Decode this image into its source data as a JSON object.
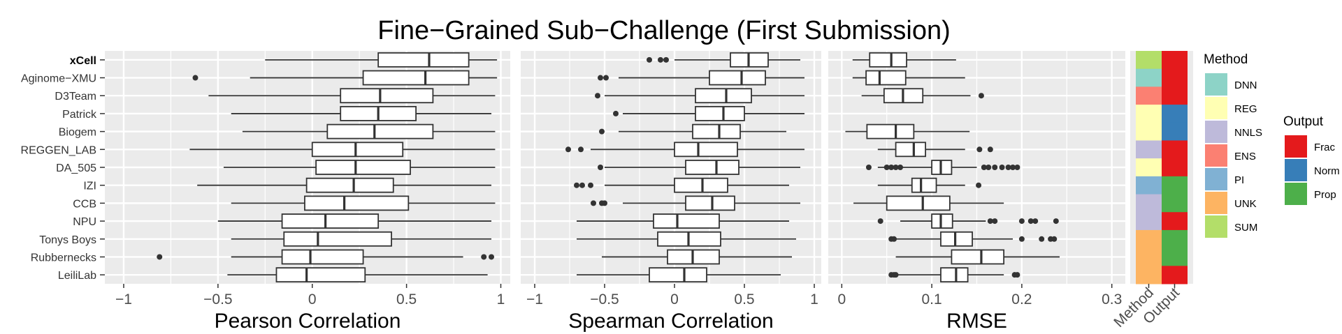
{
  "chart_data": {
    "type": "boxplot",
    "title": "Fine−Grained Sub−Challenge (First Submission)",
    "teams": [
      "xCell",
      "Aginome−XMU",
      "D3Team",
      "Patrick",
      "Biogem",
      "REGGEN_LAB",
      "DA_505",
      "IZI",
      "CCB",
      "NPU",
      "Tonys Boys",
      "Rubbernecks",
      "LeiliLab"
    ],
    "bold_team": "xCell",
    "panels": [
      {
        "xlabel": "Pearson Correlation",
        "xlim": [
          -1.1,
          1.05
        ],
        "ticks": [
          -1,
          -0.5,
          0,
          0.5,
          1
        ],
        "tick_labels": [
          "−1",
          "−0.5",
          "0",
          "0.5",
          "1"
        ],
        "boxes": [
          {
            "team": "xCell",
            "whisker_low": -0.25,
            "q1": 0.35,
            "median": 0.62,
            "q3": 0.83,
            "whisker_high": 0.98,
            "outliers": []
          },
          {
            "team": "Aginome−XMU",
            "whisker_low": -0.33,
            "q1": 0.27,
            "median": 0.6,
            "q3": 0.83,
            "whisker_high": 0.98,
            "outliers": [
              -0.62
            ]
          },
          {
            "team": "D3Team",
            "whisker_low": -0.55,
            "q1": 0.15,
            "median": 0.36,
            "q3": 0.64,
            "whisker_high": 0.97,
            "outliers": []
          },
          {
            "team": "Patrick",
            "whisker_low": -0.43,
            "q1": 0.15,
            "median": 0.35,
            "q3": 0.55,
            "whisker_high": 0.95,
            "outliers": []
          },
          {
            "team": "Biogem",
            "whisker_low": -0.37,
            "q1": 0.08,
            "median": 0.33,
            "q3": 0.64,
            "whisker_high": 0.97,
            "outliers": []
          },
          {
            "team": "REGGEN_LAB",
            "whisker_low": -0.65,
            "q1": 0.0,
            "median": 0.23,
            "q3": 0.48,
            "whisker_high": 0.97,
            "outliers": []
          },
          {
            "team": "DA_505",
            "whisker_low": -0.47,
            "q1": 0.02,
            "median": 0.23,
            "q3": 0.52,
            "whisker_high": 0.97,
            "outliers": []
          },
          {
            "team": "IZI",
            "whisker_low": -0.61,
            "q1": -0.03,
            "median": 0.22,
            "q3": 0.43,
            "whisker_high": 0.95,
            "outliers": []
          },
          {
            "team": "CCB",
            "whisker_low": -0.43,
            "q1": -0.04,
            "median": 0.17,
            "q3": 0.51,
            "whisker_high": 0.97,
            "outliers": []
          },
          {
            "team": "NPU",
            "whisker_low": -0.5,
            "q1": -0.16,
            "median": 0.07,
            "q3": 0.35,
            "whisker_high": 0.95,
            "outliers": []
          },
          {
            "team": "Tonys Boys",
            "whisker_low": -0.43,
            "q1": -0.15,
            "median": 0.03,
            "q3": 0.42,
            "whisker_high": 0.95,
            "outliers": []
          },
          {
            "team": "Rubbernecks",
            "whisker_low": -0.43,
            "q1": -0.16,
            "median": -0.01,
            "q3": 0.27,
            "whisker_high": 0.8,
            "outliers": [
              -0.81,
              0.91,
              0.95
            ]
          },
          {
            "team": "LeiliLab",
            "whisker_low": -0.45,
            "q1": -0.19,
            "median": -0.03,
            "q3": 0.28,
            "whisker_high": 0.93,
            "outliers": []
          }
        ]
      },
      {
        "xlabel": "Spearman Correlation",
        "xlim": [
          -1.1,
          1.05
        ],
        "ticks": [
          -1,
          -0.5,
          0,
          0.5,
          1
        ],
        "tick_labels": [
          "−1",
          "−0.5",
          "0",
          "0.5",
          "1"
        ],
        "boxes": [
          {
            "team": "xCell",
            "whisker_low": 0.0,
            "q1": 0.4,
            "median": 0.53,
            "q3": 0.67,
            "whisker_high": 0.9,
            "outliers": [
              -0.18,
              -0.1,
              -0.06
            ]
          },
          {
            "team": "Aginome−XMU",
            "whisker_low": -0.4,
            "q1": 0.25,
            "median": 0.48,
            "q3": 0.65,
            "whisker_high": 0.93,
            "outliers": [
              -0.53,
              -0.49
            ]
          },
          {
            "team": "D3Team",
            "whisker_low": -0.5,
            "q1": 0.15,
            "median": 0.37,
            "q3": 0.55,
            "whisker_high": 0.93,
            "outliers": [
              -0.55
            ]
          },
          {
            "team": "Patrick",
            "whisker_low": -0.37,
            "q1": 0.15,
            "median": 0.35,
            "q3": 0.5,
            "whisker_high": 0.93,
            "outliers": [
              -0.42
            ]
          },
          {
            "team": "Biogem",
            "whisker_low": -0.4,
            "q1": 0.13,
            "median": 0.32,
            "q3": 0.47,
            "whisker_high": 0.8,
            "outliers": [
              -0.52
            ]
          },
          {
            "team": "REGGEN_LAB",
            "whisker_low": -0.6,
            "q1": 0.0,
            "median": 0.17,
            "q3": 0.45,
            "whisker_high": 0.93,
            "outliers": [
              -0.76,
              -0.67
            ]
          },
          {
            "team": "DA_505",
            "whisker_low": -0.5,
            "q1": 0.08,
            "median": 0.3,
            "q3": 0.46,
            "whisker_high": 0.9,
            "outliers": [
              -0.53
            ]
          },
          {
            "team": "IZI",
            "whisker_low": -0.5,
            "q1": 0.0,
            "median": 0.2,
            "q3": 0.38,
            "whisker_high": 0.82,
            "outliers": [
              -0.7,
              -0.66,
              -0.6
            ]
          },
          {
            "team": "CCB",
            "whisker_low": -0.37,
            "q1": 0.08,
            "median": 0.27,
            "q3": 0.43,
            "whisker_high": 0.9,
            "outliers": [
              -0.58,
              -0.52,
              -0.5
            ]
          },
          {
            "team": "NPU",
            "whisker_low": -0.7,
            "q1": -0.15,
            "median": 0.02,
            "q3": 0.32,
            "whisker_high": 0.82,
            "outliers": []
          },
          {
            "team": "Tonys Boys",
            "whisker_low": -0.7,
            "q1": -0.12,
            "median": 0.1,
            "q3": 0.33,
            "whisker_high": 0.87,
            "outliers": []
          },
          {
            "team": "Rubbernecks",
            "whisker_low": -0.52,
            "q1": -0.05,
            "median": 0.13,
            "q3": 0.32,
            "whisker_high": 0.84,
            "outliers": []
          },
          {
            "team": "LeiliLab",
            "whisker_low": -0.7,
            "q1": -0.18,
            "median": 0.07,
            "q3": 0.23,
            "whisker_high": 0.76,
            "outliers": []
          }
        ]
      },
      {
        "xlabel": "RMSE",
        "xlim": [
          -0.015,
          0.315
        ],
        "ticks": [
          0,
          0.1,
          0.2,
          0.3
        ],
        "tick_labels": [
          "0",
          "0.1",
          "0.2",
          "0.3"
        ],
        "boxes": [
          {
            "team": "xCell",
            "whisker_low": 0.012,
            "q1": 0.031,
            "median": 0.055,
            "q3": 0.072,
            "whisker_high": 0.127,
            "outliers": []
          },
          {
            "team": "Aginome−XMU",
            "whisker_low": 0.012,
            "q1": 0.027,
            "median": 0.042,
            "q3": 0.071,
            "whisker_high": 0.137,
            "outliers": []
          },
          {
            "team": "D3Team",
            "whisker_low": 0.022,
            "q1": 0.047,
            "median": 0.068,
            "q3": 0.09,
            "whisker_high": 0.143,
            "outliers": [
              0.155
            ]
          },
          {
            "team": "Patrick",
            "whisker_low": 0.0,
            "q1": 0.0,
            "median": 0.0,
            "q3": 0.0,
            "whisker_high": 0.0,
            "outliers": [],
            "empty": true
          },
          {
            "team": "Biogem",
            "whisker_low": 0.004,
            "q1": 0.028,
            "median": 0.06,
            "q3": 0.08,
            "whisker_high": 0.142,
            "outliers": []
          },
          {
            "team": "REGGEN_LAB",
            "whisker_low": 0.04,
            "q1": 0.06,
            "median": 0.08,
            "q3": 0.093,
            "whisker_high": 0.137,
            "outliers": [
              0.153,
              0.165
            ]
          },
          {
            "team": "DA_505",
            "whisker_low": 0.04,
            "q1": 0.1,
            "median": 0.11,
            "q3": 0.122,
            "whisker_high": 0.15,
            "outliers": [
              0.03,
              0.05,
              0.055,
              0.06,
              0.065,
              0.158,
              0.163,
              0.17,
              0.178,
              0.185,
              0.19,
              0.195
            ]
          },
          {
            "team": "IZI",
            "whisker_low": 0.04,
            "q1": 0.078,
            "median": 0.088,
            "q3": 0.105,
            "whisker_high": 0.137,
            "outliers": [
              0.152
            ]
          },
          {
            "team": "CCB",
            "whisker_low": 0.013,
            "q1": 0.05,
            "median": 0.09,
            "q3": 0.12,
            "whisker_high": 0.18,
            "outliers": []
          },
          {
            "team": "NPU",
            "whisker_low": 0.065,
            "q1": 0.1,
            "median": 0.11,
            "q3": 0.123,
            "whisker_high": 0.16,
            "outliers": [
              0.043,
              0.165,
              0.17,
              0.2,
              0.21,
              0.215,
              0.238
            ]
          },
          {
            "team": "Tonys Boys",
            "whisker_low": 0.06,
            "q1": 0.11,
            "median": 0.126,
            "q3": 0.145,
            "whisker_high": 0.19,
            "outliers": [
              0.055,
              0.058,
              0.2,
              0.222,
              0.232,
              0.236
            ]
          },
          {
            "team": "Rubbernecks",
            "whisker_low": 0.06,
            "q1": 0.122,
            "median": 0.155,
            "q3": 0.18,
            "whisker_high": 0.242,
            "outliers": []
          },
          {
            "team": "LeiliLab",
            "whisker_low": 0.06,
            "q1": 0.11,
            "median": 0.127,
            "q3": 0.14,
            "whisker_high": 0.18,
            "outliers": [
              0.055,
              0.058,
              0.06,
              0.192,
              0.195
            ]
          }
        ]
      }
    ],
    "annotation_stripes": {
      "labels": [
        "Method",
        "Output"
      ],
      "method": [
        "SUM",
        "DNN",
        "ENS",
        "REG",
        "REG",
        "NNLS",
        "REG",
        "PI",
        "NNLS",
        "NNLS",
        "UNK",
        "UNK",
        "UNK"
      ],
      "output": [
        "Frac",
        "Frac",
        "Frac",
        "Norm",
        "Norm",
        "Frac",
        "Frac",
        "Prop",
        "Prop",
        "Frac",
        "Prop",
        "Prop",
        "Frac"
      ]
    },
    "legends": [
      {
        "title": "Method",
        "items": [
          {
            "label": "DNN",
            "color": "#8DD3C7"
          },
          {
            "label": "REG",
            "color": "#FFFFB3"
          },
          {
            "label": "NNLS",
            "color": "#BEBADA"
          },
          {
            "label": "ENS",
            "color": "#FB8072"
          },
          {
            "label": "PI",
            "color": "#80B1D3"
          },
          {
            "label": "UNK",
            "color": "#FDB462"
          },
          {
            "label": "SUM",
            "color": "#B3DE69"
          }
        ]
      },
      {
        "title": "Output",
        "items": [
          {
            "label": "Frac",
            "color": "#E41A1C"
          },
          {
            "label": "Norm",
            "color": "#377EB8"
          },
          {
            "label": "Prop",
            "color": "#4DAF4A"
          }
        ]
      }
    ],
    "grid": true,
    "panel_background": "#EBEBEB",
    "grid_color": "#FFFFFF"
  }
}
